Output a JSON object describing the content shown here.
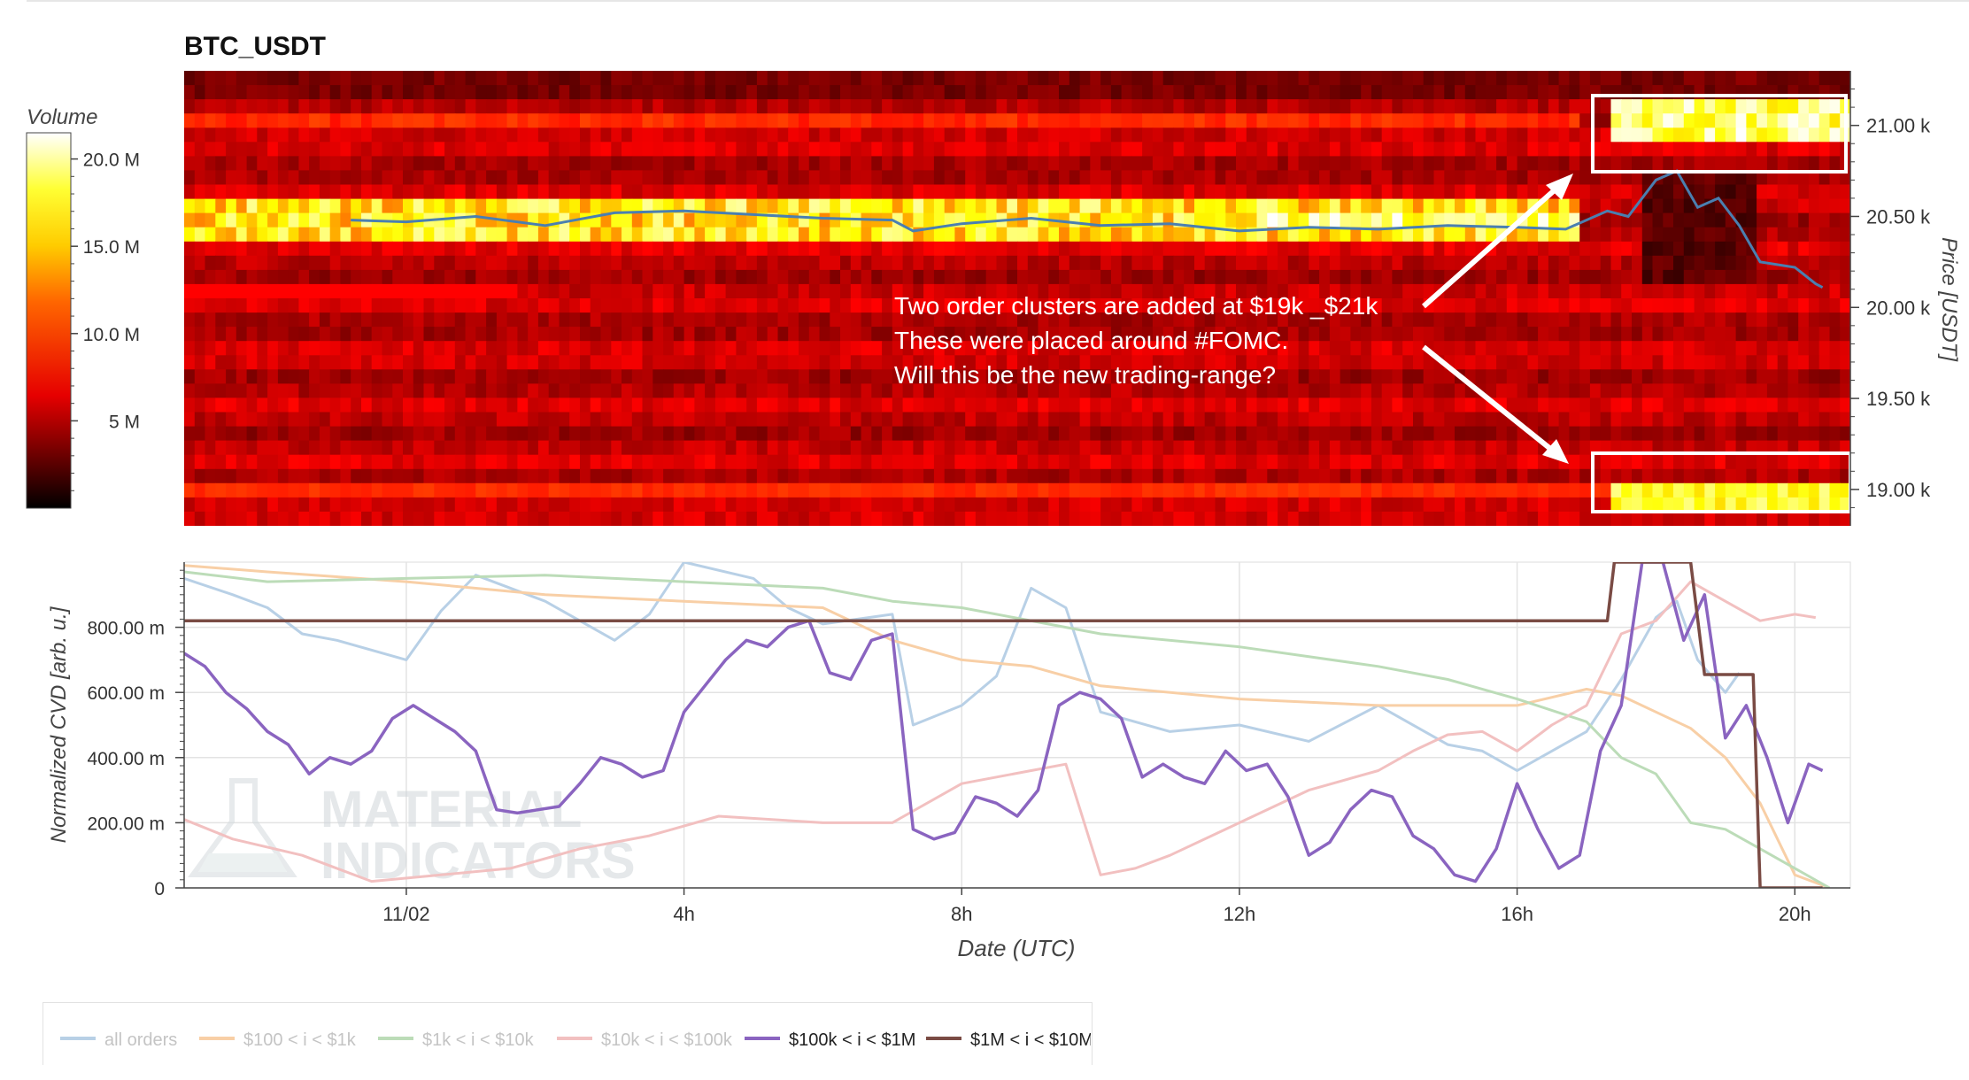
{
  "chart_data": [
    {
      "type": "heatmap",
      "title": "BTC_USDT",
      "ylabel": "Price [USDT]",
      "y_ticks": [
        "21.00 k",
        "20.50 k",
        "20.00 k",
        "19.50 k",
        "19.00 k"
      ],
      "y_tick_values": [
        21000,
        20500,
        20000,
        19500,
        19000
      ],
      "ylim": [
        18800,
        21300
      ],
      "colorbar": {
        "title": "Volume",
        "ticks": [
          "20.0 M",
          "15.0 M",
          "10.0 M",
          "5 M"
        ],
        "tick_values": [
          20,
          15,
          10,
          5
        ],
        "range": [
          0,
          21.5
        ],
        "colorscale": "hot"
      },
      "price_line": {
        "color": "#4a7fb0",
        "x_hours": [
          -0.8,
          0,
          1,
          2,
          3,
          4,
          5,
          6,
          7,
          7.3,
          8,
          9,
          10,
          11,
          12,
          13,
          14,
          15,
          16,
          16.7,
          17.3,
          17.6,
          18,
          18.3,
          18.6,
          18.9,
          19.2,
          19.5,
          20,
          20.3,
          20.4
        ],
        "y_price": [
          20480,
          20470,
          20500,
          20450,
          20520,
          20530,
          20510,
          20490,
          20480,
          20420,
          20460,
          20490,
          20450,
          20460,
          20420,
          20440,
          20430,
          20450,
          20440,
          20430,
          20530,
          20500,
          20700,
          20750,
          20550,
          20600,
          20450,
          20250,
          20220,
          20130,
          20110
        ]
      },
      "annotation": {
        "lines": [
          "Two order clusters are added at $19k _$21k",
          "These were placed around #FOMC.",
          "Will this be the new trading-range?"
        ],
        "highlight_ranges_price": [
          [
            20850,
            21200
          ],
          [
            18880,
            19200
          ]
        ],
        "highlight_start_hour": 17.3
      }
    },
    {
      "type": "line",
      "xlabel": "Date (UTC)",
      "ylabel": "Normalized CVD [arb. u.]",
      "x_ticks": [
        "11/02",
        "4h",
        "8h",
        "12h",
        "16h",
        "20h"
      ],
      "x_tick_hours": [
        0,
        4,
        8,
        12,
        16,
        20
      ],
      "xlim": [
        -3.2,
        20.8
      ],
      "y_ticks": [
        "0",
        "200.00 m",
        "400.00 m",
        "600.00 m",
        "800.00 m"
      ],
      "y_tick_values": [
        0,
        200,
        400,
        600,
        800
      ],
      "ylim": [
        0,
        1000
      ],
      "grid": true,
      "legend_position": "bottom",
      "watermark": [
        "MATERIAL",
        "INDICATORS"
      ],
      "series": [
        {
          "name": "all orders",
          "color": "#b8d0e6",
          "faded": true,
          "x": [
            -3.2,
            -2.5,
            -2,
            -1.5,
            -1,
            0,
            0.5,
            1,
            2,
            3,
            3.5,
            4,
            5,
            5.5,
            6,
            7,
            7.3,
            8,
            8.5,
            9,
            9.5,
            10,
            11,
            12,
            13,
            14,
            15,
            15.5,
            16,
            16.5,
            17,
            17.5,
            18,
            18.3,
            18.6,
            19,
            19.2
          ],
          "y": [
            950,
            900,
            860,
            780,
            760,
            700,
            850,
            960,
            880,
            760,
            840,
            1000,
            950,
            860,
            810,
            840,
            500,
            560,
            650,
            920,
            860,
            540,
            480,
            500,
            450,
            560,
            440,
            420,
            360,
            420,
            480,
            640,
            830,
            880,
            700,
            600,
            660
          ]
        },
        {
          "name": "$100 < i < $1k",
          "color": "#f8cfa6",
          "faded": true,
          "x": [
            -3.2,
            -2,
            0,
            2,
            4,
            6,
            7,
            8,
            9,
            10,
            12,
            14,
            16,
            17,
            17.5,
            18,
            18.5,
            19,
            19.5,
            20,
            20.5
          ],
          "y": [
            990,
            970,
            940,
            900,
            880,
            860,
            760,
            700,
            680,
            620,
            580,
            560,
            560,
            610,
            590,
            540,
            490,
            400,
            260,
            40,
            0
          ]
        },
        {
          "name": "$1k < i < $10k",
          "color": "#bcdcb8",
          "faded": true,
          "x": [
            -3.2,
            -2,
            0,
            2,
            4,
            6,
            7,
            8,
            10,
            12,
            14,
            15,
            16,
            17,
            17.5,
            18,
            18.5,
            19,
            19.5,
            20,
            20.5
          ],
          "y": [
            970,
            940,
            950,
            960,
            940,
            920,
            880,
            860,
            780,
            740,
            680,
            640,
            580,
            510,
            400,
            350,
            200,
            180,
            120,
            60,
            0
          ]
        },
        {
          "name": "$10k < i < $100k",
          "color": "#f2c0c0",
          "faded": true,
          "x": [
            -3.2,
            -2.5,
            -1.5,
            -0.5,
            0.5,
            1.5,
            2.5,
            3.5,
            4.5,
            6,
            7,
            8,
            9,
            9.5,
            10,
            10.5,
            11,
            12,
            13,
            14,
            14.5,
            15,
            15.5,
            16,
            16.5,
            17,
            17.5,
            18,
            18.5,
            19,
            19.5,
            20,
            20.3
          ],
          "y": [
            210,
            150,
            100,
            20,
            40,
            60,
            120,
            160,
            220,
            200,
            200,
            320,
            360,
            380,
            40,
            60,
            100,
            200,
            300,
            360,
            420,
            470,
            480,
            420,
            500,
            560,
            780,
            820,
            940,
            880,
            820,
            840,
            830
          ]
        },
        {
          "name": "$100k < i < $1M",
          "color": "#8a64c0",
          "faded": false,
          "x": [
            -3.2,
            -2.9,
            -2.6,
            -2.3,
            -2.0,
            -1.7,
            -1.4,
            -1.1,
            -0.8,
            -0.5,
            -0.2,
            0.1,
            0.4,
            0.7,
            1.0,
            1.3,
            1.6,
            1.9,
            2.2,
            2.5,
            2.8,
            3.1,
            3.4,
            3.7,
            4.0,
            4.3,
            4.6,
            4.9,
            5.2,
            5.5,
            5.8,
            6.1,
            6.4,
            6.7,
            7.0,
            7.3,
            7.6,
            7.9,
            8.2,
            8.5,
            8.8,
            9.1,
            9.4,
            9.7,
            10.0,
            10.3,
            10.6,
            10.9,
            11.2,
            11.5,
            11.8,
            12.1,
            12.4,
            12.7,
            13.0,
            13.3,
            13.6,
            13.9,
            14.2,
            14.5,
            14.8,
            15.1,
            15.4,
            15.7,
            16.0,
            16.3,
            16.6,
            16.9,
            17.2,
            17.5,
            17.8,
            18.1,
            18.4,
            18.7,
            19.0,
            19.3,
            19.6,
            19.9,
            20.2,
            20.4
          ],
          "y": [
            720,
            680,
            600,
            550,
            480,
            440,
            350,
            400,
            380,
            420,
            520,
            560,
            520,
            480,
            420,
            240,
            230,
            240,
            250,
            320,
            400,
            380,
            340,
            360,
            540,
            620,
            700,
            760,
            740,
            800,
            820,
            660,
            640,
            760,
            780,
            180,
            150,
            170,
            280,
            260,
            220,
            300,
            560,
            600,
            580,
            520,
            340,
            380,
            340,
            320,
            420,
            360,
            380,
            280,
            100,
            140,
            240,
            300,
            280,
            160,
            120,
            40,
            20,
            120,
            320,
            180,
            60,
            100,
            420,
            560,
            1000,
            1000,
            760,
            900,
            460,
            560,
            400,
            200,
            380,
            360
          ]
        },
        {
          "name": "$1M < i < $10M",
          "color": "#7a4b44",
          "faded": false,
          "x": [
            -3.2,
            17.3,
            17.4,
            18.5,
            18.7,
            19.4,
            19.5,
            20.4
          ],
          "y": [
            820,
            820,
            1000,
            1000,
            655,
            655,
            0,
            0
          ]
        }
      ]
    }
  ]
}
